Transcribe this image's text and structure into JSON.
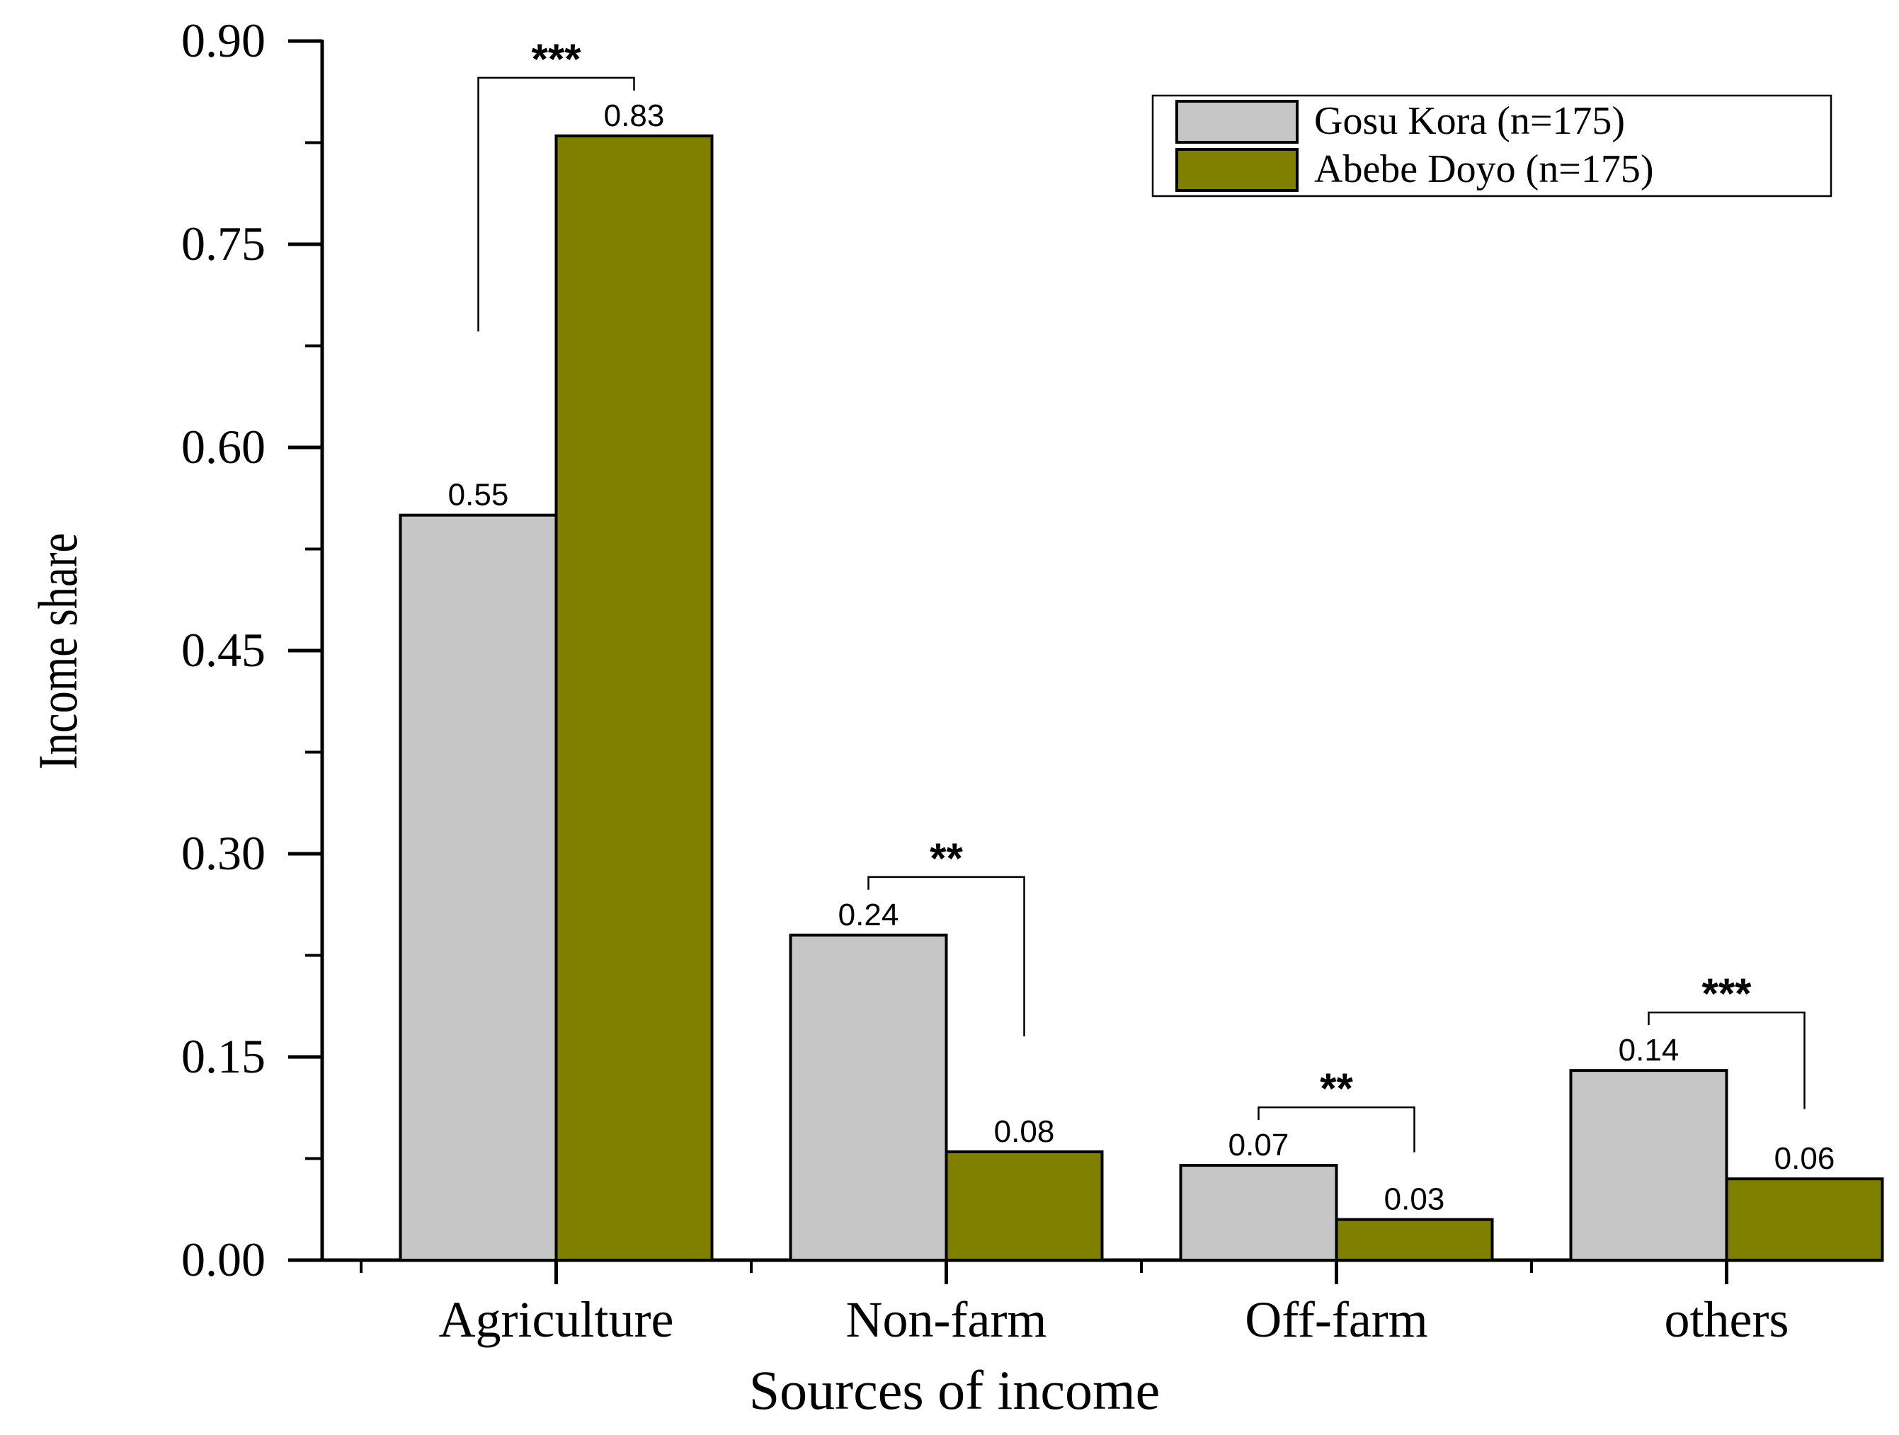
{
  "chart_data": {
    "type": "bar",
    "title": "",
    "xlabel": "Sources of income",
    "ylabel": "Income share",
    "categories": [
      "Agriculture",
      "Non-farm",
      "Off-farm",
      "others"
    ],
    "series": [
      {
        "name": "Gosu Kora (n=175)",
        "color": "#c6c6c6",
        "values": [
          0.55,
          0.24,
          0.07,
          0.14
        ]
      },
      {
        "name": "Abebe Doyo (n=175)",
        "color": "#808000",
        "values": [
          0.83,
          0.08,
          0.03,
          0.06
        ]
      }
    ],
    "data_labels": [
      [
        "0.55",
        "0.24",
        "0.07",
        "0.14"
      ],
      [
        "0.83",
        "0.08",
        "0.03",
        "0.06"
      ]
    ],
    "significance": [
      "***",
      "**",
      "**",
      "***"
    ],
    "ylim": [
      0,
      0.9
    ],
    "yticks": [
      0.0,
      0.15,
      0.3,
      0.45,
      0.6,
      0.75,
      0.9
    ],
    "ytick_labels": [
      "0.00",
      "0.15",
      "0.30",
      "0.45",
      "0.60",
      "0.75",
      "0.90"
    ],
    "grid": false,
    "legend_position": "top-right"
  }
}
